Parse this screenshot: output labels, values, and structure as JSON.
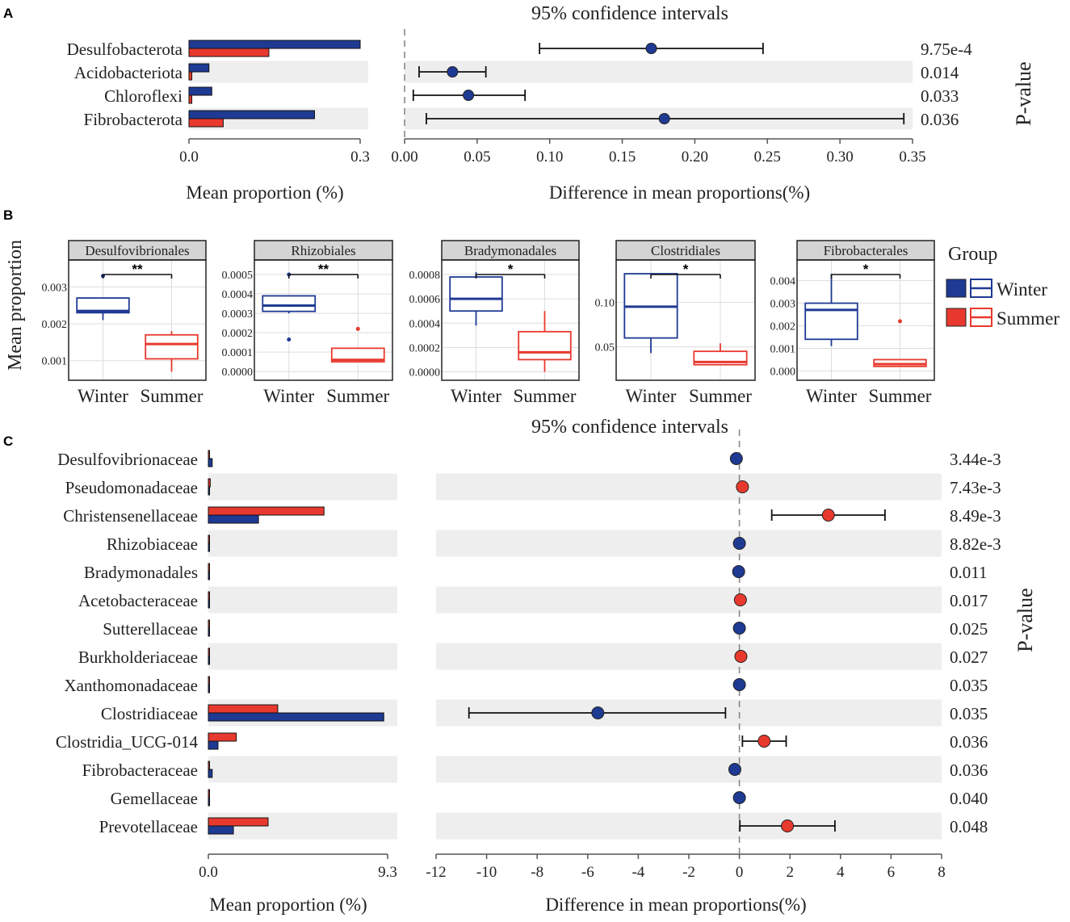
{
  "colors": {
    "winter": "#1f3a93",
    "summer": "#e8392e",
    "band": "#eeeeee",
    "axis": "#555555",
    "grid": "#dddddd"
  },
  "chart_data": [
    {
      "id": "A",
      "panel_label": "A",
      "type": "bar",
      "ci_title": "95% confidence intervals",
      "categories": [
        "Desulfobacterota",
        "Acidobacteriota",
        "Chloroflexi",
        "Fibrobacterota"
      ],
      "series": [
        {
          "name": "Winter",
          "values": [
            0.3,
            0.035,
            0.04,
            0.22
          ]
        },
        {
          "name": "Summer",
          "values": [
            0.14,
            0.005,
            0.005,
            0.06
          ]
        }
      ],
      "bar_ticks": [
        "0.0",
        "0.3"
      ],
      "bar_xmax": 0.3,
      "bar_xlabel": "Mean proportion (%)",
      "ci_xlabel": "Difference in mean proportions(%)",
      "ci_xlim": [
        0,
        0.35
      ],
      "ci_ticks": [
        "0.00",
        "0.05",
        "0.10",
        "0.15",
        "0.20",
        "0.25",
        "0.30",
        "0.35"
      ],
      "diff": [
        {
          "mean": 0.17,
          "lo": 0.093,
          "hi": 0.247,
          "group": "Winter"
        },
        {
          "mean": 0.033,
          "lo": 0.01,
          "hi": 0.056,
          "group": "Winter"
        },
        {
          "mean": 0.044,
          "lo": 0.006,
          "hi": 0.083,
          "group": "Winter"
        },
        {
          "mean": 0.179,
          "lo": 0.015,
          "hi": 0.344,
          "group": "Winter"
        }
      ],
      "pvalues": [
        "9.75e-4",
        "0.014",
        "0.033",
        "0.036"
      ],
      "pvalue_label": "P-value"
    },
    {
      "id": "B",
      "panel_label": "B",
      "type": "box",
      "ylabel": "Mean proportion",
      "xcats": [
        "Winter",
        "Summer"
      ],
      "legend_title": "Group",
      "legend_items": [
        "Winter",
        "Summer"
      ],
      "panels": [
        {
          "title": "Desulfovibrionales",
          "sig": "**",
          "yrange": [
            0.0006,
            0.0036
          ],
          "ticks": [
            [
              "0.003",
              0.003
            ],
            [
              "0.002",
              0.002
            ],
            [
              "0.001",
              0.001
            ]
          ],
          "winter": {
            "min": 0.0021,
            "q1": 0.0023,
            "med": 0.00235,
            "q3": 0.0027,
            "max": 0.0027,
            "outliers": [
              0.0033
            ]
          },
          "summer": {
            "min": 0.0007,
            "q1": 0.00105,
            "med": 0.00145,
            "q3": 0.0017,
            "max": 0.0018,
            "outliers": []
          }
        },
        {
          "title": "Rhizobiales",
          "sig": "**",
          "yrange": [
            -2e-05,
            0.00055
          ],
          "ticks": [
            [
              "0.0005",
              0.0005
            ],
            [
              "0.0004",
              0.0004
            ],
            [
              "0.0003",
              0.0003
            ],
            [
              "0.0002",
              0.0002
            ],
            [
              "0.0001",
              0.0001
            ],
            [
              "0.0000",
              0.0
            ]
          ],
          "winter": {
            "min": 0.0003,
            "q1": 0.00031,
            "med": 0.00034,
            "q3": 0.00039,
            "max": 0.00039,
            "outliers": [
              0.0005,
              0.000165
            ]
          },
          "summer": {
            "min": 5e-05,
            "q1": 5e-05,
            "med": 6e-05,
            "q3": 0.00012,
            "max": 0.00012,
            "outliers": [
              0.00022
            ]
          }
        },
        {
          "title": "Bradymonadales",
          "sig": "*",
          "yrange": [
            -3e-05,
            0.00088
          ],
          "ticks": [
            [
              "0.0008",
              0.0008
            ],
            [
              "0.0006",
              0.0006
            ],
            [
              "0.0004",
              0.0004
            ],
            [
              "0.0002",
              0.0002
            ],
            [
              "0.0000",
              0.0
            ]
          ],
          "winter": {
            "min": 0.00038,
            "q1": 0.0005,
            "med": 0.0006,
            "q3": 0.00078,
            "max": 0.00082,
            "outliers": []
          },
          "summer": {
            "min": 0.0,
            "q1": 0.0001,
            "med": 0.00016,
            "q3": 0.00033,
            "max": 0.0005,
            "outliers": []
          }
        },
        {
          "title": "Clostridiales",
          "sig": "*",
          "yrange": [
            0.018,
            0.142
          ],
          "ticks": [
            [
              "0.10",
              0.1
            ],
            [
              "0.05",
              0.05
            ]
          ],
          "winter": {
            "min": 0.043,
            "q1": 0.06,
            "med": 0.095,
            "q3": 0.132,
            "max": 0.132,
            "outliers": []
          },
          "summer": {
            "min": 0.03,
            "q1": 0.03,
            "med": 0.033,
            "q3": 0.045,
            "max": 0.054,
            "outliers": []
          }
        },
        {
          "title": "Fibrobacterales",
          "sig": "*",
          "yrange": [
            -0.0002,
            0.0047
          ],
          "ticks": [
            [
              "0.004",
              0.004
            ],
            [
              "0.003",
              0.003
            ],
            [
              "0.002",
              0.002
            ],
            [
              "0.001",
              0.001
            ],
            [
              "0.000",
              0.0
            ]
          ],
          "winter": {
            "min": 0.0011,
            "q1": 0.0014,
            "med": 0.0027,
            "q3": 0.003,
            "max": 0.0043,
            "outliers": []
          },
          "summer": {
            "min": 0.0002,
            "q1": 0.0002,
            "med": 0.0003,
            "q3": 0.0005,
            "max": 0.0005,
            "outliers": [
              0.0022
            ]
          }
        }
      ]
    },
    {
      "id": "C",
      "panel_label": "C",
      "type": "bar",
      "ci_title": "95% confidence intervals",
      "categories": [
        "Desulfovibrionaceae",
        "Pseudomonadaceae",
        "Christensenellaceae",
        "Rhizobiaceae",
        "Bradymonadales",
        "Acetobacteraceae",
        "Sutterellaceae",
        "Burkholderiaceae",
        "Xanthomonadaceae",
        "Clostridiaceae",
        "Clostridia_UCG-014",
        "Fibrobacteraceae",
        "Gemellaceae",
        "Prevotellaceae"
      ],
      "series": [
        {
          "name": "Summer",
          "values": [
            0.05,
            0.1,
            6.0,
            0.05,
            0.03,
            0.05,
            0.02,
            0.05,
            0.02,
            3.6,
            1.45,
            0.05,
            0.02,
            3.1
          ]
        },
        {
          "name": "Winter",
          "values": [
            0.2,
            0.05,
            2.6,
            0.05,
            0.05,
            0.03,
            0.02,
            0.04,
            0.02,
            9.1,
            0.5,
            0.2,
            0.02,
            1.3
          ]
        }
      ],
      "bar_ticks": [
        "0.0",
        "9.3"
      ],
      "bar_xmax": 9.3,
      "bar_xlabel": "Mean proportion (%)",
      "ci_xlabel": "Difference in mean proportions(%)",
      "ci_xlim": [
        -12,
        8
      ],
      "ci_ticks": [
        "-12",
        "-10",
        "-8",
        "-6",
        "-4",
        "-2",
        "0",
        "2",
        "4",
        "6",
        "8"
      ],
      "diff": [
        {
          "mean": -0.12,
          "lo": null,
          "hi": null,
          "group": "Winter"
        },
        {
          "mean": 0.12,
          "lo": null,
          "hi": null,
          "group": "Summer"
        },
        {
          "mean": 3.52,
          "lo": 1.28,
          "hi": 5.76,
          "group": "Summer"
        },
        {
          "mean": 0.0,
          "lo": null,
          "hi": null,
          "group": "Winter"
        },
        {
          "mean": -0.03,
          "lo": null,
          "hi": null,
          "group": "Winter"
        },
        {
          "mean": 0.04,
          "lo": null,
          "hi": null,
          "group": "Summer"
        },
        {
          "mean": 0.0,
          "lo": null,
          "hi": null,
          "group": "Winter"
        },
        {
          "mean": 0.06,
          "lo": null,
          "hi": null,
          "group": "Summer"
        },
        {
          "mean": 0.0,
          "lo": null,
          "hi": null,
          "group": "Winter"
        },
        {
          "mean": -5.6,
          "lo": -10.7,
          "hi": -0.55,
          "group": "Winter"
        },
        {
          "mean": 0.98,
          "lo": 0.12,
          "hi": 1.85,
          "group": "Summer"
        },
        {
          "mean": -0.18,
          "lo": null,
          "hi": null,
          "group": "Winter"
        },
        {
          "mean": 0.0,
          "lo": null,
          "hi": null,
          "group": "Winter"
        },
        {
          "mean": 1.9,
          "lo": 0.02,
          "hi": 3.78,
          "group": "Summer"
        }
      ],
      "pvalues": [
        "3.44e-3",
        "7.43e-3",
        "8.49e-3",
        "8.82e-3",
        "0.011",
        "0.017",
        "0.025",
        "0.027",
        "0.035",
        "0.035",
        "0.036",
        "0.036",
        "0.040",
        "0.048"
      ],
      "pvalue_label": "P-value"
    }
  ]
}
